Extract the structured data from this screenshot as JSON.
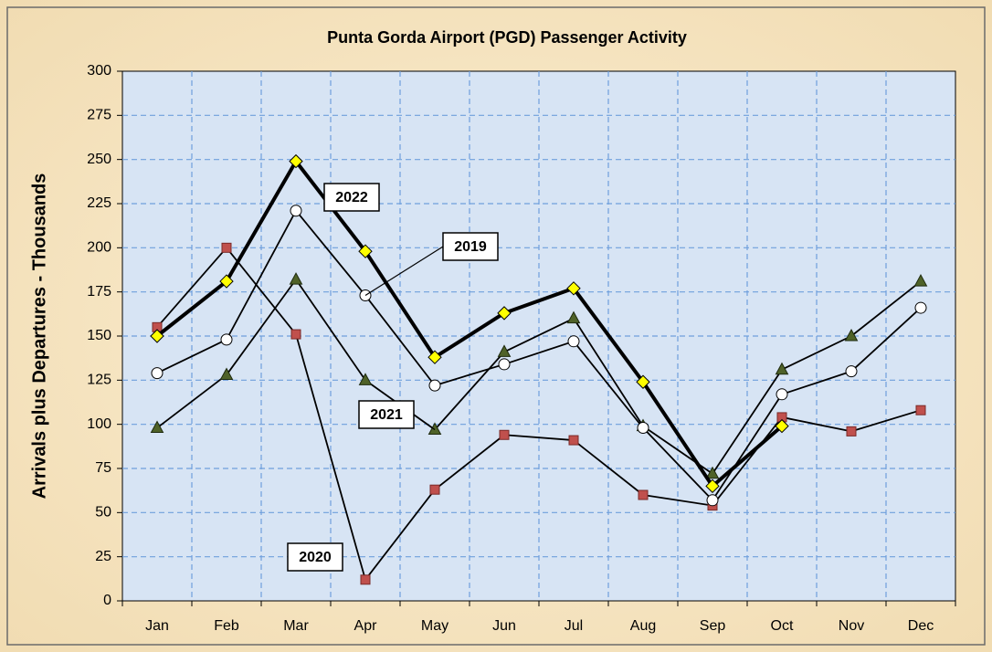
{
  "chart_data": {
    "type": "line",
    "title": "Punta Gorda Airport (PGD) Passenger Activity",
    "y_label": "Arrivals plus Departures - Thousands",
    "categories": [
      "Jan",
      "Feb",
      "Mar",
      "Apr",
      "May",
      "Jun",
      "Jul",
      "Aug",
      "Sep",
      "Oct",
      "Nov",
      "Dec"
    ],
    "series": [
      {
        "name": "2020",
        "color": "#c0504d",
        "marker": "square",
        "values": [
          155,
          200,
          151,
          12,
          63,
          94,
          91,
          60,
          54,
          104,
          96,
          108
        ]
      },
      {
        "name": "2021",
        "color": "#4f6228",
        "marker": "triangle",
        "values": [
          98,
          128,
          182,
          125,
          97,
          141,
          160,
          99,
          72,
          131,
          150,
          181
        ]
      },
      {
        "name": "2019",
        "color": "#ffffff",
        "marker": "circle",
        "values": [
          129,
          148,
          221,
          173,
          122,
          134,
          147,
          98,
          57,
          117,
          130,
          166
        ]
      },
      {
        "name": "2022",
        "color": "#ffff00",
        "marker": "diamond",
        "values": [
          150,
          181,
          249,
          198,
          138,
          163,
          177,
          124,
          65,
          99,
          null,
          null
        ]
      }
    ],
    "ylim": [
      0,
      300
    ],
    "yticks": [
      0,
      25,
      50,
      75,
      100,
      125,
      150,
      175,
      200,
      225,
      250,
      275,
      300
    ],
    "grid": true
  }
}
